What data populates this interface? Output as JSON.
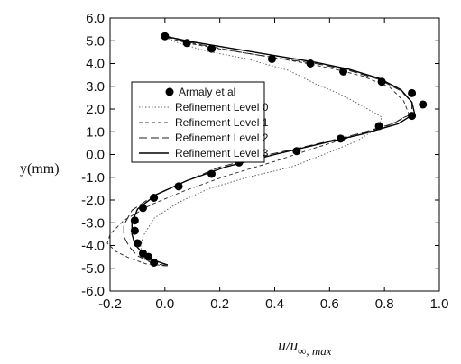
{
  "chart_data": {
    "type": "line",
    "title": "",
    "xlabel_main": "u/u",
    "xlabel_sub": "∞, max",
    "ylabel": "y(mm)",
    "xlim": [
      -0.2,
      1.0
    ],
    "ylim": [
      -6.0,
      6.0
    ],
    "x_ticks": [
      -0.2,
      0.0,
      0.2,
      0.4,
      0.6,
      0.8,
      1.0
    ],
    "x_tick_labels": [
      "-0.2",
      "0.0",
      "0.2",
      "0.4",
      "0.6",
      "0.8",
      "1.0"
    ],
    "y_ticks": [
      -6,
      -5,
      -4,
      -3,
      -2,
      -1,
      0,
      1,
      2,
      3,
      4,
      5,
      6
    ],
    "y_tick_labels": [
      "-6.0",
      "-5.0",
      "-4.0",
      "-3.0",
      "-2.0",
      "-1.0",
      "0.0",
      "1.0",
      "2.0",
      "3.0",
      "4.0",
      "5.0",
      "6.0"
    ],
    "grid": false,
    "legend_position": "center-left",
    "series": [
      {
        "name": "Armaly et al",
        "style": "markers",
        "color": "#000000",
        "points": [
          [
            0.0,
            5.2
          ],
          [
            0.08,
            4.9
          ],
          [
            0.17,
            4.65
          ],
          [
            0.39,
            4.2
          ],
          [
            0.53,
            4.0
          ],
          [
            0.65,
            3.65
          ],
          [
            0.79,
            3.2
          ],
          [
            0.9,
            2.7
          ],
          [
            0.94,
            2.2
          ],
          [
            0.9,
            1.7
          ],
          [
            0.78,
            1.25
          ],
          [
            0.64,
            0.7
          ],
          [
            0.48,
            0.15
          ],
          [
            0.27,
            -0.35
          ],
          [
            0.17,
            -0.85
          ],
          [
            0.05,
            -1.4
          ],
          [
            -0.04,
            -1.9
          ],
          [
            -0.08,
            -2.35
          ],
          [
            -0.11,
            -2.9
          ],
          [
            -0.11,
            -3.35
          ],
          [
            -0.1,
            -3.9
          ],
          [
            -0.08,
            -4.35
          ],
          [
            -0.06,
            -4.5
          ],
          [
            -0.04,
            -4.75
          ]
        ]
      },
      {
        "name": "Refinement Level 0",
        "style": "dotted",
        "color": "#666666",
        "points": [
          [
            -0.01,
            5.2
          ],
          [
            0.05,
            4.9
          ],
          [
            0.15,
            4.55
          ],
          [
            0.3,
            4.2
          ],
          [
            0.45,
            3.7
          ],
          [
            0.55,
            3.1
          ],
          [
            0.63,
            2.7
          ],
          [
            0.71,
            2.2
          ],
          [
            0.79,
            1.65
          ],
          [
            0.78,
            1.2
          ],
          [
            0.7,
            0.6
          ],
          [
            0.6,
            0.1
          ],
          [
            0.46,
            -0.55
          ],
          [
            0.3,
            -1.0
          ],
          [
            0.16,
            -1.5
          ],
          [
            0.05,
            -2.1
          ],
          [
            -0.04,
            -2.8
          ],
          [
            -0.08,
            -3.6
          ],
          [
            -0.09,
            -4.1
          ],
          [
            -0.06,
            -4.5
          ],
          [
            -0.02,
            -4.75
          ],
          [
            0.0,
            -4.85
          ]
        ]
      },
      {
        "name": "Refinement Level 1",
        "style": "short-dash",
        "color": "#333333",
        "points": [
          [
            -0.01,
            5.2
          ],
          [
            0.08,
            4.9
          ],
          [
            0.22,
            4.6
          ],
          [
            0.38,
            4.3
          ],
          [
            0.52,
            4.0
          ],
          [
            0.62,
            3.75
          ],
          [
            0.72,
            3.45
          ],
          [
            0.82,
            2.95
          ],
          [
            0.87,
            2.35
          ],
          [
            0.89,
            1.75
          ],
          [
            0.82,
            1.3
          ],
          [
            0.7,
            0.85
          ],
          [
            0.55,
            0.3
          ],
          [
            0.4,
            -0.3
          ],
          [
            0.22,
            -0.95
          ],
          [
            0.07,
            -1.6
          ],
          [
            -0.05,
            -2.2
          ],
          [
            -0.15,
            -2.9
          ],
          [
            -0.2,
            -3.5
          ],
          [
            -0.21,
            -3.9
          ],
          [
            -0.18,
            -4.25
          ],
          [
            -0.13,
            -4.55
          ],
          [
            -0.07,
            -4.8
          ],
          [
            0.01,
            -4.9
          ]
        ]
      },
      {
        "name": "Refinement Level 2",
        "style": "long-dash",
        "color": "#222222",
        "points": [
          [
            0.0,
            5.2
          ],
          [
            0.1,
            4.9
          ],
          [
            0.25,
            4.55
          ],
          [
            0.4,
            4.25
          ],
          [
            0.55,
            4.0
          ],
          [
            0.67,
            3.7
          ],
          [
            0.78,
            3.3
          ],
          [
            0.86,
            2.8
          ],
          [
            0.9,
            2.3
          ],
          [
            0.9,
            1.8
          ],
          [
            0.83,
            1.35
          ],
          [
            0.7,
            0.9
          ],
          [
            0.55,
            0.45
          ],
          [
            0.38,
            0.0
          ],
          [
            0.2,
            -0.55
          ],
          [
            0.07,
            -1.2
          ],
          [
            -0.04,
            -1.8
          ],
          [
            -0.12,
            -2.45
          ],
          [
            -0.15,
            -3.1
          ],
          [
            -0.15,
            -3.6
          ],
          [
            -0.13,
            -4.05
          ],
          [
            -0.1,
            -4.45
          ],
          [
            -0.05,
            -4.75
          ],
          [
            0.01,
            -4.9
          ]
        ]
      },
      {
        "name": "Refinement Level 3",
        "style": "solid",
        "color": "#000000",
        "points": [
          [
            0.0,
            5.2
          ],
          [
            0.1,
            4.95
          ],
          [
            0.25,
            4.65
          ],
          [
            0.4,
            4.35
          ],
          [
            0.55,
            4.05
          ],
          [
            0.67,
            3.75
          ],
          [
            0.78,
            3.35
          ],
          [
            0.86,
            2.85
          ],
          [
            0.9,
            2.3
          ],
          [
            0.91,
            1.8
          ],
          [
            0.85,
            1.35
          ],
          [
            0.72,
            0.9
          ],
          [
            0.56,
            0.45
          ],
          [
            0.4,
            0.0
          ],
          [
            0.22,
            -0.55
          ],
          [
            0.08,
            -1.15
          ],
          [
            -0.03,
            -1.75
          ],
          [
            -0.1,
            -2.4
          ],
          [
            -0.12,
            -3.0
          ],
          [
            -0.12,
            -3.5
          ],
          [
            -0.11,
            -3.95
          ],
          [
            -0.08,
            -4.35
          ],
          [
            -0.04,
            -4.65
          ],
          [
            0.01,
            -4.85
          ]
        ]
      }
    ]
  }
}
